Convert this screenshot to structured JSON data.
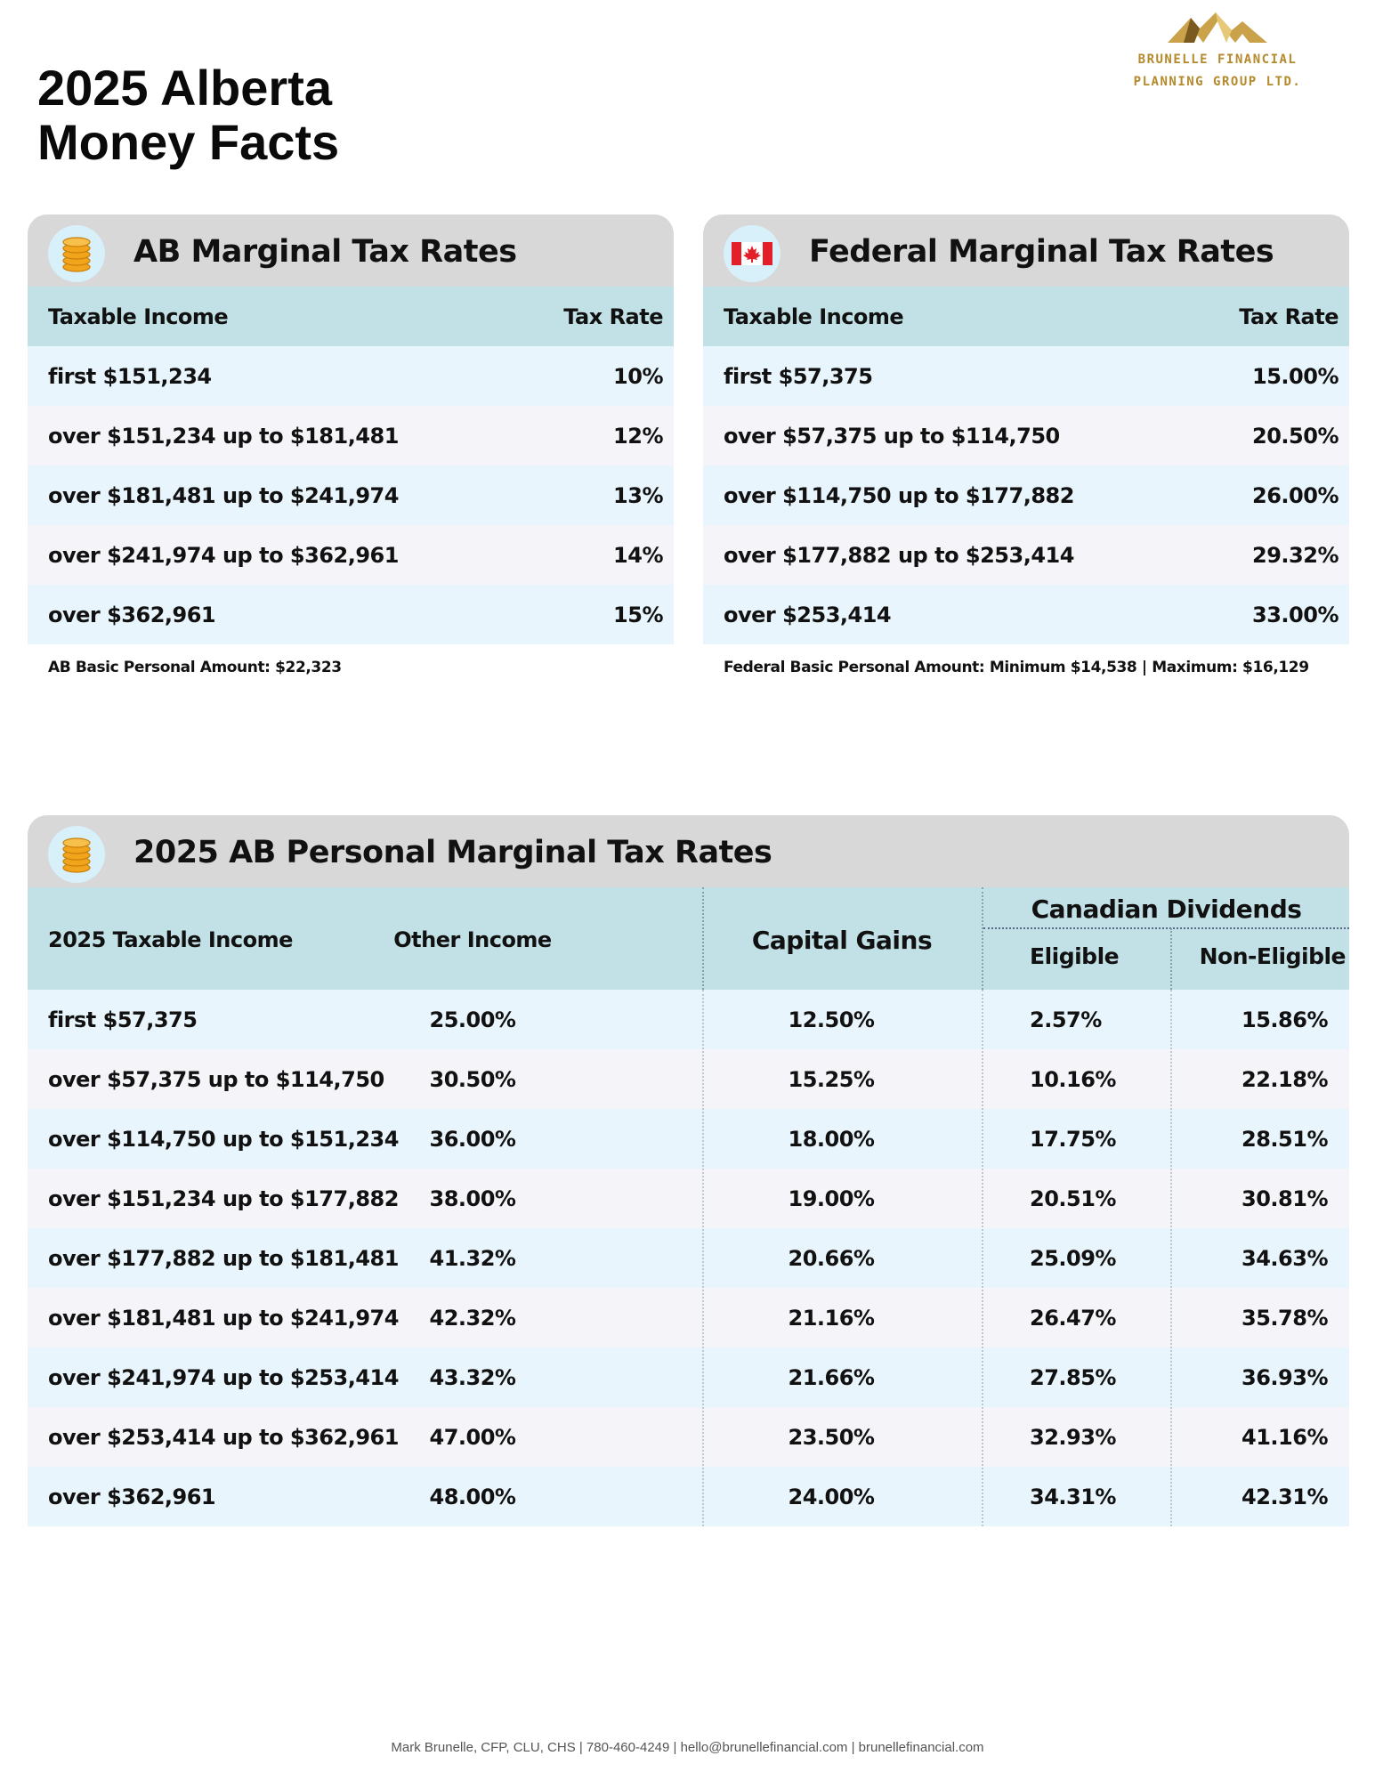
{
  "title": {
    "line1": "2025 Alberta",
    "line2": "Money Facts"
  },
  "logo": {
    "line1": "BRUNELLE FINANCIAL",
    "line2": "PLANNING GROUP LTD."
  },
  "ab_panel": {
    "icon": "coins-icon",
    "title": "AB Marginal Tax Rates",
    "col_income": "Taxable Income",
    "col_rate": "Tax Rate",
    "rows": [
      {
        "income": "first $151,234",
        "rate": "10%"
      },
      {
        "income": "over $151,234 up to $181,481",
        "rate": "12%"
      },
      {
        "income": "over $181,481 up to $241,974",
        "rate": "13%"
      },
      {
        "income": "over $241,974 up to $362,961",
        "rate": "14%"
      },
      {
        "income": "over $362,961",
        "rate": "15%"
      }
    ],
    "note": "AB Basic Personal Amount:  $22,323"
  },
  "fed_panel": {
    "icon": "canada-flag-icon",
    "title": "Federal Marginal Tax Rates",
    "col_income": "Taxable Income",
    "col_rate": "Tax Rate",
    "rows": [
      {
        "income": "first $57,375",
        "rate": "15.00%"
      },
      {
        "income": "over $57,375 up to $114,750",
        "rate": "20.50%"
      },
      {
        "income": "over $114,750 up to $177,882",
        "rate": "26.00%"
      },
      {
        "income": "over $177,882 up to $253,414",
        "rate": "29.32%"
      },
      {
        "income": "over $253,414",
        "rate": "33.00%"
      }
    ],
    "note": "Federal Basic Personal Amount:  Minimum $14,538 | Maximum: $16,129"
  },
  "combined": {
    "icon": "coins-icon",
    "title": "2025 AB Personal Marginal Tax Rates",
    "headers": {
      "income": "2025 Taxable Income",
      "other": "Other Income",
      "capital": "Capital Gains",
      "dividends": "Canadian Dividends",
      "eligible": "Eligible",
      "non_eligible": "Non-Eligible"
    },
    "rows": [
      [
        "first $57,375",
        "25.00%",
        "12.50%",
        "2.57%",
        "15.86%"
      ],
      [
        "over $57,375 up to $114,750",
        "30.50%",
        "15.25%",
        "10.16%",
        "22.18%"
      ],
      [
        "over $114,750 up to $151,234",
        "36.00%",
        "18.00%",
        "17.75%",
        "28.51%"
      ],
      [
        "over $151,234 up to $177,882",
        "38.00%",
        "19.00%",
        "20.51%",
        "30.81%"
      ],
      [
        "over $177,882 up to $181,481",
        "41.32%",
        "20.66%",
        "25.09%",
        "34.63%"
      ],
      [
        "over $181,481 up to $241,974",
        "42.32%",
        "21.16%",
        "26.47%",
        "35.78%"
      ],
      [
        "over $241,974 up to $253,414",
        "43.32%",
        "21.66%",
        "27.85%",
        "36.93%"
      ],
      [
        "over $253,414 up to $362,961",
        "47.00%",
        "23.50%",
        "32.93%",
        "41.16%"
      ],
      [
        "over $362,961",
        "48.00%",
        "24.00%",
        "34.31%",
        "42.31%"
      ]
    ]
  },
  "footer": "Mark Brunelle, CFP, CLU, CHS | 780-460-4249 | hello@brunellefinancial.com | brunellefinancial.com"
}
